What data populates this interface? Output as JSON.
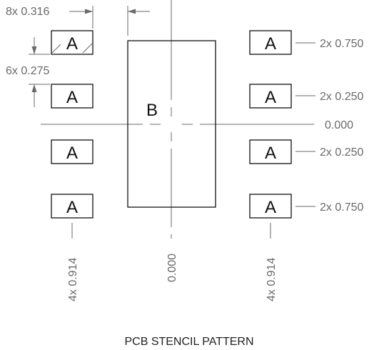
{
  "pad_label": "A",
  "center_pad_label": "B",
  "dimensions": {
    "pad_width": "8x 0.316",
    "pad_height": "6x 0.275",
    "right_rows": [
      "2x 0.750",
      "2x 0.250",
      "0.000",
      "2x 0.250",
      "2x 0.750"
    ],
    "bottom_left": "4x 0.914",
    "bottom_center": "0.000",
    "bottom_right": "4x 0.914"
  },
  "caption": "PCB STENCIL PATTERN",
  "colors": {
    "outline": "#111111",
    "dimension": "#6a6a6a"
  }
}
